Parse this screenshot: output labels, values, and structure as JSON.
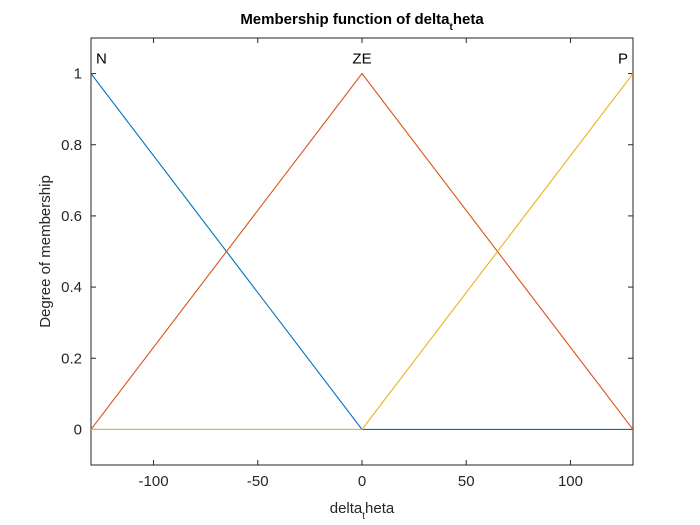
{
  "chart_data": {
    "type": "line",
    "title_main": "Membership function of delta",
    "title_sub": "t",
    "title_tail": "heta",
    "xlabel_main": "delta",
    "xlabel_sub": "t",
    "xlabel_tail": "heta",
    "ylabel": "Degree of membership",
    "xlim": [
      -130,
      130
    ],
    "ylim": [
      -0.1,
      1.1
    ],
    "xticks": [
      -100,
      -50,
      0,
      50,
      100
    ],
    "xtick_labels": [
      "-100",
      "-50",
      "0",
      "50",
      "100"
    ],
    "yticks": [
      0,
      0.2,
      0.4,
      0.6,
      0.8,
      1
    ],
    "ytick_labels": [
      "0",
      "0.2",
      "0.4",
      "0.6",
      "0.8",
      "1"
    ],
    "grid": false,
    "series": [
      {
        "name": "N",
        "color": "#0072BD",
        "x": [
          -130,
          0,
          130
        ],
        "y": [
          1,
          0,
          0
        ],
        "label_x": -130
      },
      {
        "name": "ZE",
        "color": "#D95319",
        "x": [
          -130,
          0,
          130
        ],
        "y": [
          0,
          1,
          0
        ],
        "label_x": 0
      },
      {
        "name": "P",
        "color": "#EDB120",
        "x": [
          -130,
          0,
          130
        ],
        "y": [
          0,
          0,
          1
        ],
        "label_x": 130
      }
    ]
  }
}
